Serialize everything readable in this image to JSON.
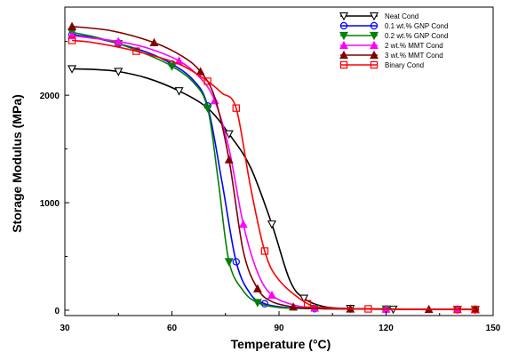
{
  "chart_data": {
    "type": "line",
    "title": "",
    "xlabel": "Temperature (°C)",
    "ylabel": "Storage Modulus (MPa)",
    "xlim": [
      30,
      150
    ],
    "ylim": [
      -50,
      2820
    ],
    "x_ticks": [
      30,
      60,
      90,
      120,
      150
    ],
    "y_ticks": [
      0,
      1000,
      2000
    ],
    "grid": false,
    "legend_position": "top-right",
    "series": [
      {
        "name": "Neat Cond",
        "color": "#000000",
        "marker": "triangle-down",
        "x": [
          32,
          38,
          45,
          53,
          62,
          70,
          76,
          82,
          88,
          93,
          97,
          103,
          110,
          116,
          122,
          130,
          140,
          145
        ],
        "y": [
          2245,
          2240,
          2220,
          2160,
          2040,
          1880,
          1640,
          1330,
          800,
          280,
          110,
          30,
          15,
          10,
          8,
          7,
          6,
          6
        ]
      },
      {
        "name": "0.1 wt.% GNP Cond",
        "color": "#0000ff",
        "marker": "circle",
        "x": [
          32,
          38,
          45,
          53,
          60,
          66,
          70,
          74,
          78,
          82,
          86,
          92,
          100,
          110,
          120,
          132,
          140,
          145
        ],
        "y": [
          2565,
          2535,
          2480,
          2400,
          2290,
          2140,
          1900,
          1200,
          450,
          150,
          60,
          25,
          15,
          12,
          10,
          8,
          7,
          7
        ]
      },
      {
        "name": "0.2 wt.% GNP Cond",
        "color": "#008000",
        "marker": "triangle-down",
        "x": [
          32,
          38,
          45,
          53,
          60,
          66,
          70,
          73,
          76,
          80,
          84,
          90,
          100,
          110,
          120,
          132,
          140,
          145
        ],
        "y": [
          2585,
          2545,
          2480,
          2380,
          2270,
          2120,
          1880,
          1200,
          450,
          180,
          70,
          25,
          15,
          12,
          10,
          8,
          7,
          7
        ]
      },
      {
        "name": "2 wt.% MMT Cond",
        "color": "#ff00ff",
        "marker": "triangle-up",
        "x": [
          32,
          38,
          45,
          53,
          62,
          68,
          72,
          76,
          80,
          84,
          88,
          94,
          100,
          110,
          120,
          132,
          140,
          145
        ],
        "y": [
          2555,
          2530,
          2500,
          2440,
          2320,
          2160,
          1950,
          1500,
          800,
          350,
          140,
          50,
          20,
          12,
          10,
          8,
          7,
          7
        ]
      },
      {
        "name": "3 wt.% MMT Cond",
        "color": "#800000",
        "marker": "triangle-up",
        "x": [
          32,
          43,
          55,
          63,
          68,
          72,
          76,
          80,
          84,
          88,
          94,
          100,
          110,
          120,
          132,
          140,
          145
        ],
        "y": [
          2640,
          2600,
          2490,
          2360,
          2220,
          1980,
          1400,
          550,
          200,
          80,
          30,
          15,
          12,
          10,
          8,
          7,
          7
        ]
      },
      {
        "name": "Binary Cond",
        "color": "#ff0000",
        "marker": "square",
        "x": [
          32,
          38,
          50,
          62,
          70,
          74,
          78,
          82,
          86,
          90,
          98,
          104,
          115,
          127,
          140,
          145
        ],
        "y": [
          2510,
          2490,
          2410,
          2290,
          2130,
          2020,
          1880,
          1150,
          550,
          280,
          60,
          20,
          12,
          9,
          7,
          7
        ]
      }
    ]
  }
}
